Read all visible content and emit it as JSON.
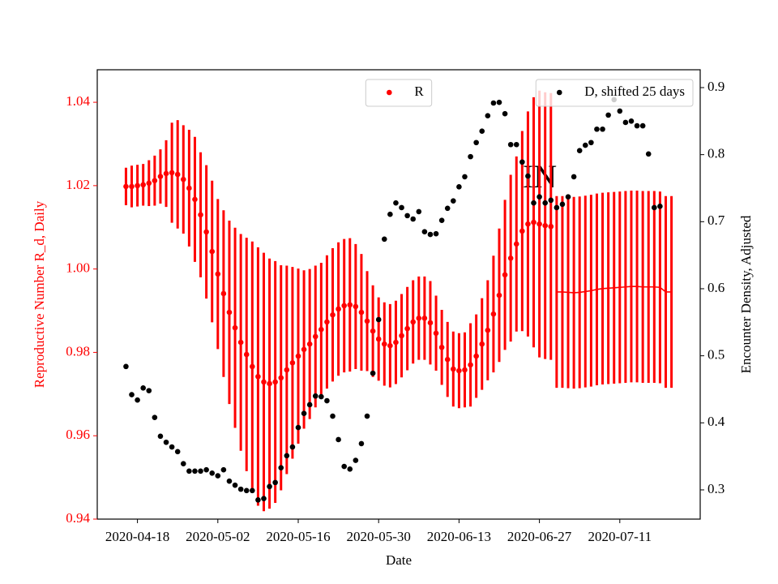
{
  "chart_data": {
    "type": "scatter",
    "xlabel": "Date",
    "ylabel": "Reproductive Number R_d, Daily",
    "ylabel_color": "#ff0000",
    "y2label": "Encounter Density, Adjusted",
    "annotation": "IN",
    "xlim": [
      "2020-04-11",
      "2020-07-25"
    ],
    "xticks": [
      "2020-04-18",
      "2020-05-02",
      "2020-05-16",
      "2020-05-30",
      "2020-06-13",
      "2020-06-27",
      "2020-07-11"
    ],
    "ylim": [
      0.94,
      1.0478
    ],
    "yticks": [
      0.94,
      0.96,
      0.98,
      {
        "value": 1,
        "label": "1.00"
      },
      1.02,
      1.04
    ],
    "y2lim": [
      0.2564,
      0.9266
    ],
    "y2ticks": [
      0.3,
      0.4,
      0.5,
      0.6,
      0.7,
      0.8,
      0.9
    ],
    "series": [
      {
        "name": "R",
        "color": "#ff0000",
        "axis": "y",
        "style": "marker",
        "legend": "upper center",
        "x": [
          "2020-04-16",
          "2020-04-17",
          "2020-04-18",
          "2020-04-19",
          "2020-04-20",
          "2020-04-21",
          "2020-04-22",
          "2020-04-23",
          "2020-04-24",
          "2020-04-25",
          "2020-04-26",
          "2020-04-27",
          "2020-04-28",
          "2020-04-29",
          "2020-04-30",
          "2020-05-01",
          "2020-05-02",
          "2020-05-03",
          "2020-05-04",
          "2020-05-05",
          "2020-05-06",
          "2020-05-07",
          "2020-05-08",
          "2020-05-09",
          "2020-05-10",
          "2020-05-11",
          "2020-05-12",
          "2020-05-13",
          "2020-05-14",
          "2020-05-15",
          "2020-05-16",
          "2020-05-17",
          "2020-05-18",
          "2020-05-19",
          "2020-05-20",
          "2020-05-21",
          "2020-05-22",
          "2020-05-23",
          "2020-05-24",
          "2020-05-25",
          "2020-05-26",
          "2020-05-27",
          "2020-05-28",
          "2020-05-29",
          "2020-05-30",
          "2020-05-31",
          "2020-06-01",
          "2020-06-02",
          "2020-06-03",
          "2020-06-04",
          "2020-06-05",
          "2020-06-06",
          "2020-06-07",
          "2020-06-08",
          "2020-06-09",
          "2020-06-10",
          "2020-06-11",
          "2020-06-12",
          "2020-06-13",
          "2020-06-14",
          "2020-06-15",
          "2020-06-16",
          "2020-06-17",
          "2020-06-18",
          "2020-06-19",
          "2020-06-20",
          "2020-06-21",
          "2020-06-22",
          "2020-06-23",
          "2020-06-24",
          "2020-06-25",
          "2020-06-26",
          "2020-06-27",
          "2020-06-28",
          "2020-06-29"
        ],
        "values": [
          1.0198,
          1.0198,
          1.02,
          1.0202,
          1.0206,
          1.0212,
          1.0222,
          1.0229,
          1.0231,
          1.0227,
          1.0215,
          1.0194,
          1.0167,
          1.013,
          1.0089,
          1.0042,
          0.9988,
          0.9941,
          0.9896,
          0.9859,
          0.9824,
          0.9795,
          0.9766,
          0.9742,
          0.9729,
          0.9725,
          0.9729,
          0.9739,
          0.9758,
          0.9775,
          0.9791,
          0.9807,
          0.982,
          0.9838,
          0.9855,
          0.9873,
          0.989,
          0.9904,
          0.9912,
          0.9914,
          0.991,
          0.9896,
          0.9875,
          0.9851,
          0.9832,
          0.982,
          0.9816,
          0.9824,
          0.984,
          0.9857,
          0.9873,
          0.9882,
          0.9882,
          0.9871,
          0.9846,
          0.9812,
          0.9783,
          0.976,
          0.9756,
          0.9758,
          0.977,
          0.9791,
          0.982,
          0.9853,
          0.9892,
          0.9937,
          0.9986,
          1.0026,
          1.006,
          1.0091,
          1.0108,
          1.0112,
          1.0108,
          1.0104,
          1.0102
        ],
        "errors": [
          0.0045,
          0.005,
          0.005,
          0.005,
          0.0055,
          0.006,
          0.0065,
          0.008,
          0.012,
          0.013,
          0.013,
          0.014,
          0.015,
          0.015,
          0.016,
          0.017,
          0.018,
          0.02,
          0.022,
          0.024,
          0.026,
          0.028,
          0.03,
          0.031,
          0.031,
          0.03,
          0.029,
          0.027,
          0.025,
          0.023,
          0.021,
          0.019,
          0.018,
          0.017,
          0.016,
          0.016,
          0.016,
          0.016,
          0.016,
          0.016,
          0.015,
          0.014,
          0.012,
          0.011,
          0.01,
          0.01,
          0.01,
          0.01,
          0.01,
          0.01,
          0.01,
          0.01,
          0.01,
          0.01,
          0.009,
          0.009,
          0.009,
          0.009,
          0.009,
          0.009,
          0.01,
          0.01,
          0.011,
          0.012,
          0.014,
          0.016,
          0.018,
          0.02,
          0.021,
          0.024,
          0.027,
          0.03,
          0.032,
          0.032,
          0.032
        ]
      },
      {
        "color": "#ff0000",
        "axis": "y",
        "style": "line",
        "x": [
          "2020-06-30",
          "2020-07-01",
          "2020-07-02",
          "2020-07-03",
          "2020-07-04",
          "2020-07-05",
          "2020-07-06",
          "2020-07-07",
          "2020-07-08",
          "2020-07-09",
          "2020-07-10",
          "2020-07-11",
          "2020-07-12",
          "2020-07-13",
          "2020-07-14",
          "2020-07-15",
          "2020-07-16",
          "2020-07-17",
          "2020-07-18",
          "2020-07-19",
          "2020-07-20"
        ],
        "values": [
          0.9945,
          0.9945,
          0.9944,
          0.9943,
          0.9944,
          0.9946,
          0.9948,
          0.9951,
          0.9953,
          0.9954,
          0.9955,
          0.9956,
          0.9957,
          0.9958,
          0.9958,
          0.9957,
          0.9957,
          0.9957,
          0.9956,
          0.9945,
          0.9945
        ],
        "errors": [
          0.023,
          0.023,
          0.023,
          0.023,
          0.023,
          0.023,
          0.023,
          0.023,
          0.023,
          0.023,
          0.023,
          0.023,
          0.023,
          0.023,
          0.023,
          0.023,
          0.023,
          0.023,
          0.023,
          0.023,
          0.023
        ]
      },
      {
        "name": "D, shifted 25 days",
        "color": "#000000",
        "axis": "y2",
        "style": "marker",
        "legend": "upper right",
        "x": [
          "2020-04-16",
          "2020-04-17",
          "2020-04-18",
          "2020-04-19",
          "2020-04-20",
          "2020-04-21",
          "2020-04-22",
          "2020-04-23",
          "2020-04-24",
          "2020-04-25",
          "2020-04-26",
          "2020-04-27",
          "2020-04-28",
          "2020-04-29",
          "2020-04-30",
          "2020-05-01",
          "2020-05-02",
          "2020-05-03",
          "2020-05-04",
          "2020-05-05",
          "2020-05-06",
          "2020-05-07",
          "2020-05-08",
          "2020-05-09",
          "2020-05-10",
          "2020-05-11",
          "2020-05-12",
          "2020-05-13",
          "2020-05-14",
          "2020-05-15",
          "2020-05-16",
          "2020-05-17",
          "2020-05-18",
          "2020-05-19",
          "2020-05-20",
          "2020-05-21",
          "2020-05-22",
          "2020-05-23",
          "2020-05-24",
          "2020-05-25",
          "2020-05-26",
          "2020-05-27",
          "2020-05-28",
          "2020-05-29",
          "2020-05-30",
          "2020-05-31",
          "2020-06-01",
          "2020-06-02",
          "2020-06-03",
          "2020-06-04",
          "2020-06-05",
          "2020-06-06",
          "2020-06-07",
          "2020-06-08",
          "2020-06-09",
          "2020-06-10",
          "2020-06-11",
          "2020-06-12",
          "2020-06-13",
          "2020-06-14",
          "2020-06-15",
          "2020-06-16",
          "2020-06-17",
          "2020-06-18",
          "2020-06-19",
          "2020-06-20",
          "2020-06-21",
          "2020-06-22",
          "2020-06-23",
          "2020-06-24",
          "2020-06-25",
          "2020-06-26",
          "2020-06-27",
          "2020-06-28",
          "2020-06-29",
          "2020-06-30",
          "2020-07-01",
          "2020-07-02",
          "2020-07-03",
          "2020-07-04",
          "2020-07-05",
          "2020-07-06",
          "2020-07-07",
          "2020-07-08",
          "2020-07-09",
          "2020-07-10",
          "2020-07-11",
          "2020-07-12",
          "2020-07-13",
          "2020-07-14",
          "2020-07-15",
          "2020-07-16",
          "2020-07-17",
          "2020-07-18"
        ],
        "values": [
          0.484,
          0.442,
          0.434,
          0.452,
          0.448,
          0.408,
          0.38,
          0.371,
          0.364,
          0.357,
          0.339,
          0.328,
          0.328,
          0.328,
          0.33,
          0.325,
          0.321,
          0.33,
          0.313,
          0.307,
          0.301,
          0.299,
          0.299,
          0.285,
          0.287,
          0.305,
          0.311,
          0.333,
          0.351,
          0.364,
          0.393,
          0.414,
          0.427,
          0.44,
          0.439,
          0.433,
          0.41,
          0.375,
          0.335,
          0.331,
          0.344,
          0.369,
          0.41,
          0.474,
          0.554,
          0.674,
          0.711,
          0.728,
          0.721,
          0.709,
          0.704,
          0.715,
          0.685,
          0.681,
          0.682,
          0.702,
          0.72,
          0.731,
          0.752,
          0.767,
          0.797,
          0.818,
          0.835,
          0.858,
          0.877,
          0.878,
          0.861,
          0.815,
          0.815,
          0.789,
          0.768,
          0.728,
          0.737,
          0.728,
          0.732,
          0.721,
          0.726,
          0.737,
          0.767,
          0.806,
          0.814,
          0.818,
          0.838,
          0.838,
          0.859,
          0.882,
          0.865,
          0.848,
          0.85,
          0.843,
          0.843,
          0.801,
          0.721,
          0.723
        ]
      }
    ]
  }
}
